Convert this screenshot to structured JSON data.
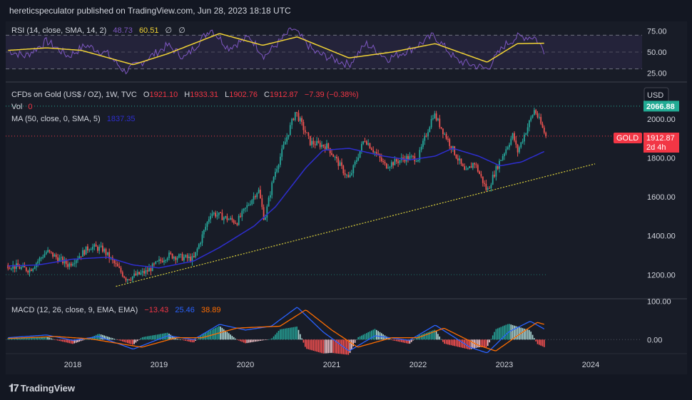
{
  "header": {
    "publisher_line": "hereticspeculator published on TradingView.com, Jun 28, 2023 18:18 UTC"
  },
  "footer": {
    "brand": "TradingView"
  },
  "colors": {
    "background": "#131722",
    "panel": "#181c27",
    "grid": "#2a2e39",
    "up": "#26a69a",
    "down": "#ef5350",
    "ma": "#2e2ecf",
    "rsi": "#7e57c2",
    "rsi_sma": "#f2d335",
    "macd": "#2962ff",
    "signal": "#ff6d00",
    "trendline": "#d9cf3c",
    "last_price": "#f23645",
    "ath": "#22ab94"
  },
  "rsi_legend": {
    "title": "RSI (14, close, SMA, 14, 2)",
    "rsi_value": "48.73",
    "sma_value": "60.51",
    "extra1": "∅",
    "extra2": "∅"
  },
  "price_legend": {
    "symbol": "CFDs on Gold (US$ / OZ), 1W, TVC",
    "o_label": "O",
    "o_value": "1921.10",
    "h_label": "H",
    "h_value": "1933.31",
    "l_label": "L",
    "l_value": "1902.76",
    "c_label": "C",
    "c_value": "1912.87",
    "change": "−7.39 (−0.38%)",
    "vol_label": "Vol",
    "vol_value": "0",
    "ma_label": "MA (50, close, 0, SMA, 5)",
    "ma_value": "1837.35"
  },
  "macd_legend": {
    "title": "MACD (12, 26, close, 9, EMA, EMA)",
    "hist_value": "−13.43",
    "macd_value": "25.46",
    "signal_value": "38.89"
  },
  "price_scale": {
    "currency": "USD",
    "ath_label": "2066.88",
    "last_symbol": "GOLD",
    "last_price": "1912.87",
    "countdown": "2d 4h"
  },
  "chart_data": [
    {
      "type": "candlestick",
      "name": "Gold weekly",
      "x_axis": {
        "ticks": [
          "2018",
          "2019",
          "2020",
          "2021",
          "2022",
          "2023",
          "2024"
        ]
      },
      "y_axis": {
        "ticks": [
          "1200.00",
          "1400.00",
          "1600.00",
          "1800.00",
          "2000.00"
        ],
        "range": [
          1080,
          2180
        ]
      },
      "anchors": [
        {
          "t": 2017.25,
          "v": 1250
        },
        {
          "t": 2017.5,
          "v": 1225
        },
        {
          "t": 2017.7,
          "v": 1320
        },
        {
          "t": 2017.95,
          "v": 1250
        },
        {
          "t": 2018.2,
          "v": 1345
        },
        {
          "t": 2018.35,
          "v": 1330
        },
        {
          "t": 2018.62,
          "v": 1180
        },
        {
          "t": 2018.85,
          "v": 1215
        },
        {
          "t": 2019.1,
          "v": 1300
        },
        {
          "t": 2019.4,
          "v": 1280
        },
        {
          "t": 2019.6,
          "v": 1520
        },
        {
          "t": 2019.9,
          "v": 1470
        },
        {
          "t": 2020.15,
          "v": 1640
        },
        {
          "t": 2020.22,
          "v": 1480
        },
        {
          "t": 2020.33,
          "v": 1710
        },
        {
          "t": 2020.58,
          "v": 2040
        },
        {
          "t": 2020.75,
          "v": 1880
        },
        {
          "t": 2020.95,
          "v": 1860
        },
        {
          "t": 2021.2,
          "v": 1690
        },
        {
          "t": 2021.38,
          "v": 1900
        },
        {
          "t": 2021.62,
          "v": 1760
        },
        {
          "t": 2021.85,
          "v": 1800
        },
        {
          "t": 2022.0,
          "v": 1800
        },
        {
          "t": 2022.18,
          "v": 2030
        },
        {
          "t": 2022.3,
          "v": 1930
        },
        {
          "t": 2022.48,
          "v": 1780
        },
        {
          "t": 2022.55,
          "v": 1720
        },
        {
          "t": 2022.65,
          "v": 1780
        },
        {
          "t": 2022.8,
          "v": 1630
        },
        {
          "t": 2022.92,
          "v": 1760
        },
        {
          "t": 2023.1,
          "v": 1920
        },
        {
          "t": 2023.15,
          "v": 1830
        },
        {
          "t": 2023.35,
          "v": 2050
        },
        {
          "t": 2023.48,
          "v": 1912.87
        }
      ],
      "ma50": [
        {
          "t": 2017.25,
          "v": 1245
        },
        {
          "t": 2017.6,
          "v": 1250
        },
        {
          "t": 2018.0,
          "v": 1280
        },
        {
          "t": 2018.4,
          "v": 1290
        },
        {
          "t": 2018.7,
          "v": 1250
        },
        {
          "t": 2019.0,
          "v": 1235
        },
        {
          "t": 2019.4,
          "v": 1270
        },
        {
          "t": 2019.7,
          "v": 1340
        },
        {
          "t": 2020.1,
          "v": 1450
        },
        {
          "t": 2020.35,
          "v": 1550
        },
        {
          "t": 2020.7,
          "v": 1750
        },
        {
          "t": 2020.9,
          "v": 1840
        },
        {
          "t": 2021.2,
          "v": 1850
        },
        {
          "t": 2021.6,
          "v": 1810
        },
        {
          "t": 2021.9,
          "v": 1790
        },
        {
          "t": 2022.2,
          "v": 1810
        },
        {
          "t": 2022.4,
          "v": 1850
        },
        {
          "t": 2022.7,
          "v": 1810
        },
        {
          "t": 2022.95,
          "v": 1760
        },
        {
          "t": 2023.2,
          "v": 1780
        },
        {
          "t": 2023.48,
          "v": 1837.35
        }
      ],
      "trendline": [
        {
          "t": 2018.5,
          "v": 1140
        },
        {
          "t": 2024.05,
          "v": 1770
        }
      ],
      "ath_level": 2066.88,
      "support_level": 1200,
      "last_price": 1912.87
    },
    {
      "type": "line",
      "name": "RSI",
      "y_axis": {
        "ticks": [
          "25.00",
          "50.00",
          "75.00"
        ],
        "range": [
          17,
          83
        ]
      },
      "bands": [
        30,
        50,
        70
      ],
      "rsi": [
        {
          "t": 2017.25,
          "v": 52
        },
        {
          "t": 2017.45,
          "v": 45
        },
        {
          "t": 2017.7,
          "v": 63
        },
        {
          "t": 2017.95,
          "v": 45
        },
        {
          "t": 2018.15,
          "v": 58
        },
        {
          "t": 2018.4,
          "v": 48
        },
        {
          "t": 2018.6,
          "v": 27
        },
        {
          "t": 2018.8,
          "v": 38
        },
        {
          "t": 2019.1,
          "v": 58
        },
        {
          "t": 2019.3,
          "v": 43
        },
        {
          "t": 2019.6,
          "v": 78
        },
        {
          "t": 2019.8,
          "v": 55
        },
        {
          "t": 2020.05,
          "v": 68
        },
        {
          "t": 2020.22,
          "v": 45
        },
        {
          "t": 2020.55,
          "v": 78
        },
        {
          "t": 2020.8,
          "v": 50
        },
        {
          "t": 2021.2,
          "v": 35
        },
        {
          "t": 2021.4,
          "v": 60
        },
        {
          "t": 2021.65,
          "v": 42
        },
        {
          "t": 2021.95,
          "v": 55
        },
        {
          "t": 2022.18,
          "v": 70
        },
        {
          "t": 2022.45,
          "v": 40
        },
        {
          "t": 2022.8,
          "v": 30
        },
        {
          "t": 2023.0,
          "v": 58
        },
        {
          "t": 2023.15,
          "v": 68
        },
        {
          "t": 2023.35,
          "v": 68
        },
        {
          "t": 2023.48,
          "v": 48.73
        }
      ],
      "sma": [
        {
          "t": 2017.25,
          "v": 52
        },
        {
          "t": 2017.7,
          "v": 55
        },
        {
          "t": 2018.1,
          "v": 52
        },
        {
          "t": 2018.7,
          "v": 35
        },
        {
          "t": 2019.1,
          "v": 48
        },
        {
          "t": 2019.7,
          "v": 72
        },
        {
          "t": 2020.2,
          "v": 58
        },
        {
          "t": 2020.6,
          "v": 68
        },
        {
          "t": 2021.2,
          "v": 43
        },
        {
          "t": 2021.7,
          "v": 50
        },
        {
          "t": 2022.2,
          "v": 60
        },
        {
          "t": 2022.8,
          "v": 38
        },
        {
          "t": 2023.15,
          "v": 60
        },
        {
          "t": 2023.48,
          "v": 60.51
        }
      ]
    },
    {
      "type": "histogram+line",
      "name": "MACD",
      "y_axis": {
        "ticks": [
          "0.00",
          "100.00"
        ],
        "range": [
          -35,
          105
        ]
      },
      "macd": [
        {
          "t": 2017.25,
          "v": 5
        },
        {
          "t": 2017.7,
          "v": 12
        },
        {
          "t": 2018.0,
          "v": -2
        },
        {
          "t": 2018.3,
          "v": 8
        },
        {
          "t": 2018.7,
          "v": -25
        },
        {
          "t": 2019.1,
          "v": 10
        },
        {
          "t": 2019.4,
          "v": 0
        },
        {
          "t": 2019.7,
          "v": 40
        },
        {
          "t": 2020.0,
          "v": 25
        },
        {
          "t": 2020.3,
          "v": 35
        },
        {
          "t": 2020.6,
          "v": 85
        },
        {
          "t": 2020.9,
          "v": 20
        },
        {
          "t": 2021.2,
          "v": -30
        },
        {
          "t": 2021.5,
          "v": 10
        },
        {
          "t": 2021.9,
          "v": -2
        },
        {
          "t": 2022.2,
          "v": 38
        },
        {
          "t": 2022.6,
          "v": -20
        },
        {
          "t": 2022.8,
          "v": -35
        },
        {
          "t": 2023.05,
          "v": 20
        },
        {
          "t": 2023.3,
          "v": 48
        },
        {
          "t": 2023.48,
          "v": 25.46
        }
      ],
      "signal": [
        {
          "t": 2017.25,
          "v": 3
        },
        {
          "t": 2017.8,
          "v": 8
        },
        {
          "t": 2018.2,
          "v": 2
        },
        {
          "t": 2018.8,
          "v": -20
        },
        {
          "t": 2019.2,
          "v": 5
        },
        {
          "t": 2019.5,
          "v": 5
        },
        {
          "t": 2019.9,
          "v": 30
        },
        {
          "t": 2020.4,
          "v": 35
        },
        {
          "t": 2020.7,
          "v": 78
        },
        {
          "t": 2021.0,
          "v": 25
        },
        {
          "t": 2021.3,
          "v": -20
        },
        {
          "t": 2021.7,
          "v": 5
        },
        {
          "t": 2022.0,
          "v": 5
        },
        {
          "t": 2022.3,
          "v": 30
        },
        {
          "t": 2022.7,
          "v": -15
        },
        {
          "t": 2022.9,
          "v": -30
        },
        {
          "t": 2023.15,
          "v": 10
        },
        {
          "t": 2023.38,
          "v": 45
        },
        {
          "t": 2023.48,
          "v": 38.89
        }
      ]
    }
  ]
}
